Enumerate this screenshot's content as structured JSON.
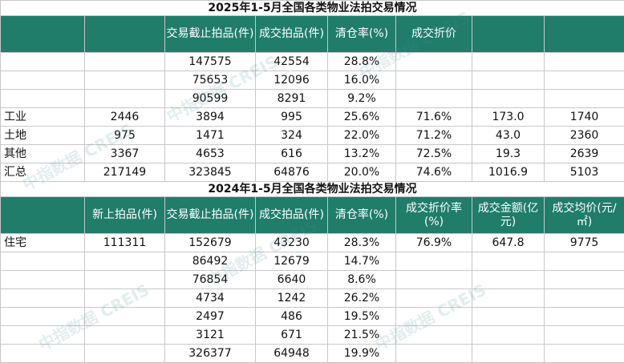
{
  "table2025": {
    "title": "2025年1-5月全国各类物业法拍交易情况",
    "headers": [
      "",
      "交易截止拍品(件)",
      "成交拍品(件)",
      "清仓率(%)",
      "成交折价",
      "",
      ""
    ],
    "rows": [
      {
        "label": "",
        "c1": "",
        "c2": "147575",
        "c3": "42554",
        "c4": "28.8%",
        "c5": "",
        "c6": "",
        "c7": ""
      },
      {
        "label": "",
        "c1": "",
        "c2": "75653",
        "c3": "12096",
        "c4": "16.0%",
        "c5": "",
        "c6": "",
        "c7": ""
      },
      {
        "label": "",
        "c1": "",
        "c2": "90599",
        "c3": "8291",
        "c4": "9.2%",
        "c5": "",
        "c6": "",
        "c7": ""
      },
      {
        "label": "工业",
        "c1": "2446",
        "c2": "3894",
        "c3": "995",
        "c4": "25.6%",
        "c5": "71.6%",
        "c6": "173.0",
        "c7": "1740"
      },
      {
        "label": "土地",
        "c1": "975",
        "c2": "1471",
        "c3": "324",
        "c4": "22.0%",
        "c5": "71.2%",
        "c6": "43.0",
        "c7": "2360"
      },
      {
        "label": "其他",
        "c1": "3367",
        "c2": "4653",
        "c3": "616",
        "c4": "13.2%",
        "c5": "72.5%",
        "c6": "19.3",
        "c7": "2639"
      },
      {
        "label": "汇总",
        "c1": "217149",
        "c2": "323845",
        "c3": "64876",
        "c4": "20.0%",
        "c5": "74.6%",
        "c6": "1016.9",
        "c7": "5103"
      }
    ]
  },
  "table2024": {
    "title": "2024年1-5月全国各类物业法拍交易情况",
    "headers": [
      "",
      "新上拍品(件)",
      "交易截止拍品(件)",
      "成交拍品(件)",
      "清仓率(%)",
      "成交折价率(%)",
      "成交金额(亿元)",
      "成交均价(元/㎡)"
    ],
    "rows": [
      {
        "label": "住宅",
        "c1": "111311",
        "c2": "152679",
        "c3": "43230",
        "c4": "28.3%",
        "c5": "76.9%",
        "c6": "647.8",
        "c7": "9775"
      },
      {
        "label": "",
        "c1": "",
        "c2": "86492",
        "c3": "12679",
        "c4": "14.7%",
        "c5": "",
        "c6": "",
        "c7": ""
      },
      {
        "label": "",
        "c1": "",
        "c2": "76854",
        "c3": "6640",
        "c4": "8.6%",
        "c5": "",
        "c6": "",
        "c7": ""
      },
      {
        "label": "",
        "c1": "",
        "c2": "4734",
        "c3": "1242",
        "c4": "26.2%",
        "c5": "",
        "c6": "",
        "c7": ""
      },
      {
        "label": "",
        "c1": "",
        "c2": "2497",
        "c3": "486",
        "c4": "19.5%",
        "c5": "",
        "c6": "",
        "c7": ""
      },
      {
        "label": "",
        "c1": "",
        "c2": "3121",
        "c3": "671",
        "c4": "21.5%",
        "c5": "",
        "c6": "",
        "c7": ""
      },
      {
        "label": "",
        "c1": "",
        "c2": "326377",
        "c3": "64948",
        "c4": "19.9%",
        "c5": "",
        "c6": "",
        "c7": ""
      }
    ]
  },
  "watermarks": [
    "中指数据 CREIS",
    "中指数据 CREIS",
    "中指数据 CREIS",
    "中指数据 CREIS",
    "中指数据 CREIS",
    "中指数据 CREIS"
  ],
  "colors": {
    "header_bg": "#1f7d6a",
    "header_text": "#ffffff"
  }
}
